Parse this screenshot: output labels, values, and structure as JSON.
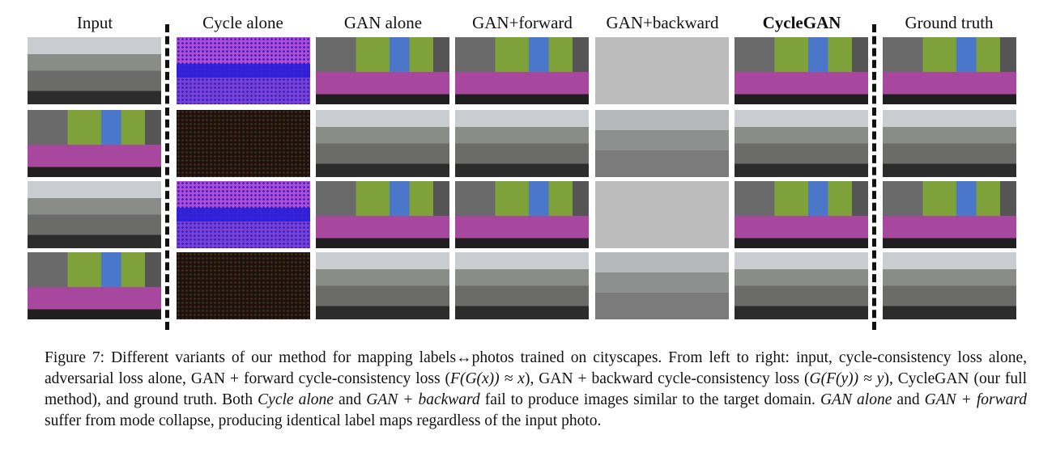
{
  "figure": {
    "column_headers": [
      "Input",
      "Cycle alone",
      "GAN alone",
      "GAN+forward",
      "GAN+backward",
      "CycleGAN",
      "Ground truth"
    ],
    "caption": [
      {
        "text": "Figure 7: Different variants of our method for mapping labels↔photos trained on cityscapes. From left to right: input, cycle-consistency loss alone, adversarial loss alone, GAN + forward cycle-consistency loss ("
      },
      {
        "text": "F(G(x)) ≈ x"
      },
      {
        "text": "), GAN + backward cycle-consistency loss ("
      },
      {
        "text": "G(F(y)) ≈ y"
      },
      {
        "text": "), CycleGAN (our full method), and ground truth.  Both "
      },
      {
        "text": "Cycle alone"
      },
      {
        "text": " and "
      },
      {
        "text": "GAN + backward"
      },
      {
        "text": " fail to produce images similar to the target domain. "
      },
      {
        "text": "GAN alone"
      },
      {
        "text": " and "
      },
      {
        "text": "GAN + forward"
      },
      {
        "text": " suffer from mode collapse, producing identical label maps regardless of the input photo."
      }
    ]
  }
}
